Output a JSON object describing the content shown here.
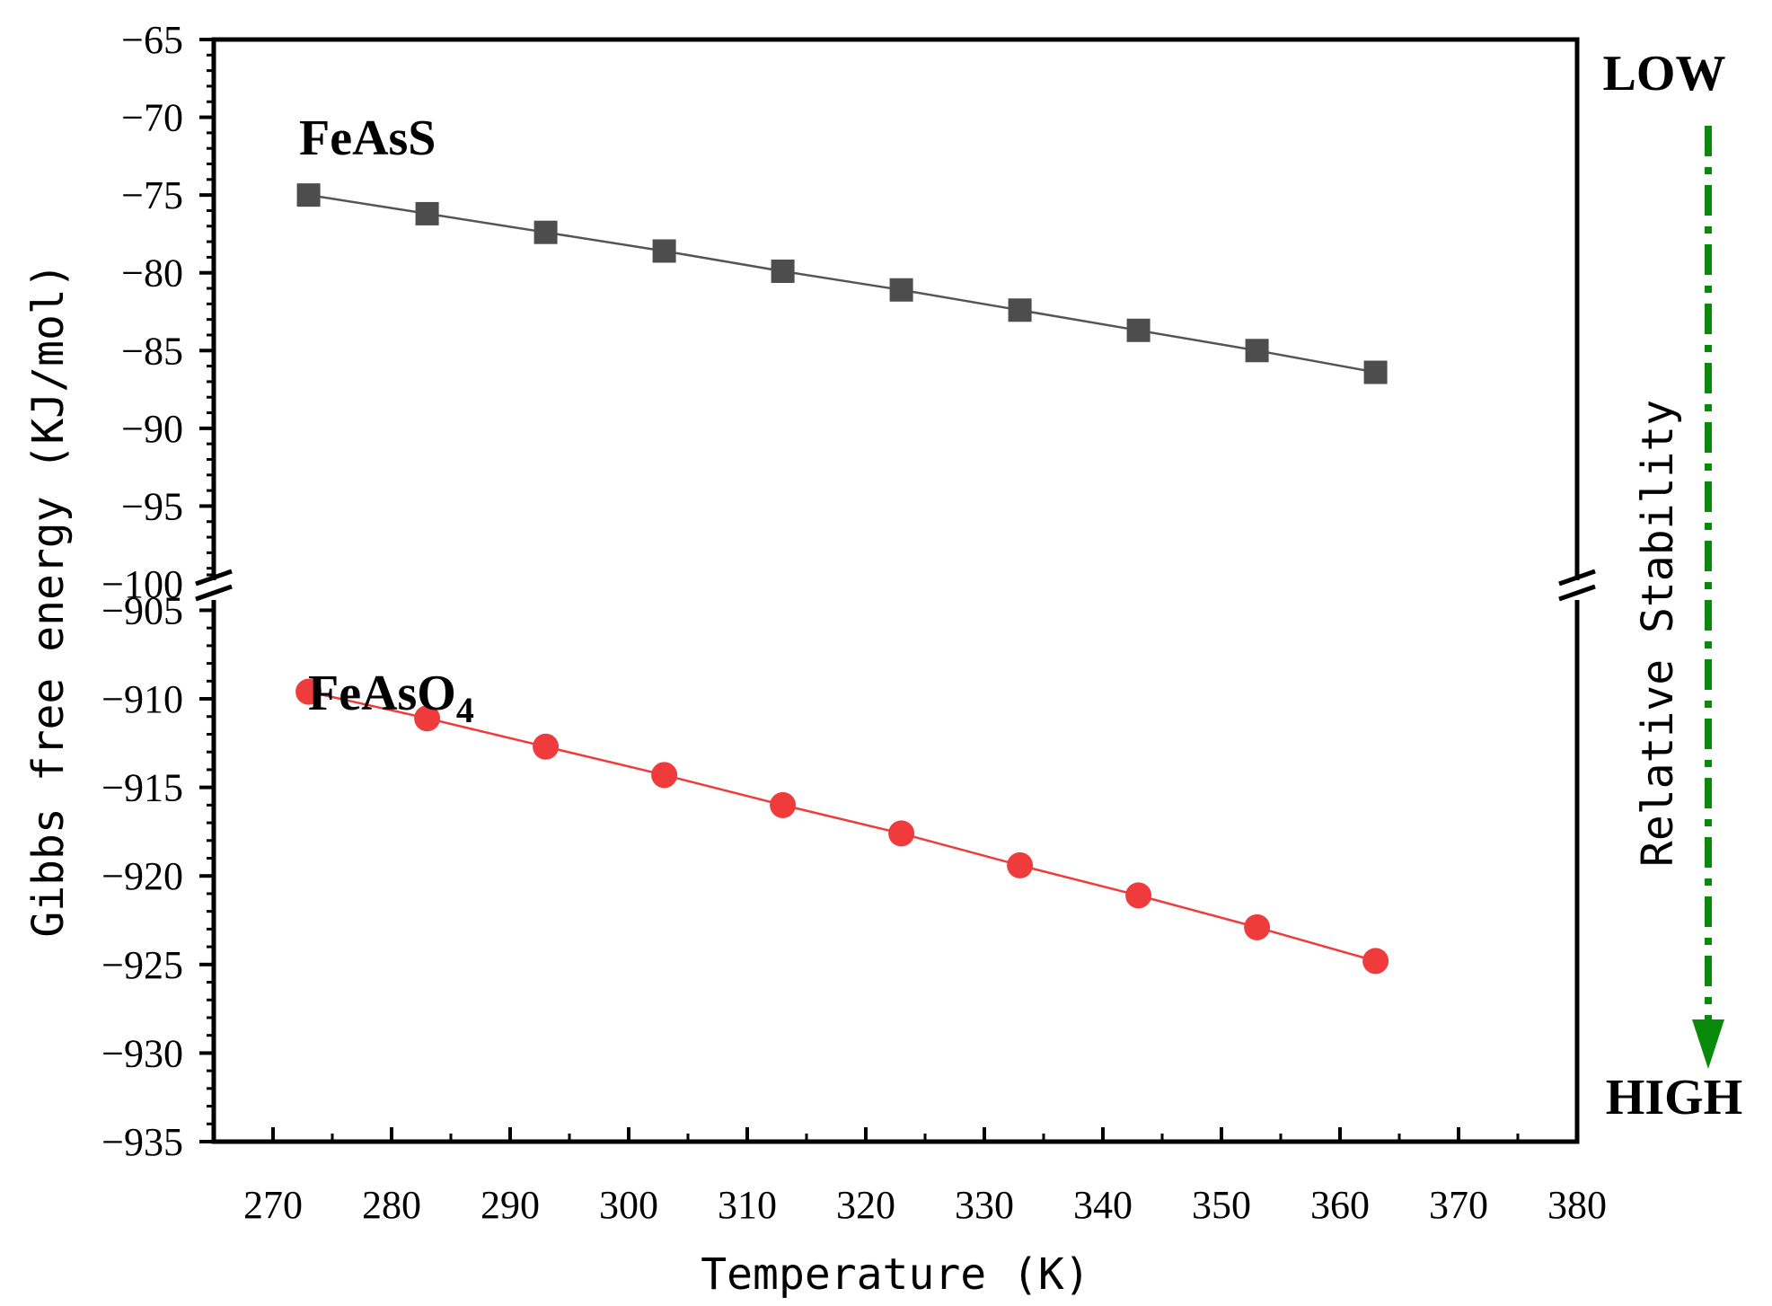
{
  "chart_data": {
    "type": "scatter",
    "xlabel": "Temperature (K)",
    "ylabel": "Gibbs free energy (KJ/mol)",
    "xlim": [
      265,
      380
    ],
    "x_ticks": [
      270,
      280,
      290,
      300,
      310,
      320,
      330,
      340,
      350,
      360,
      370,
      380
    ],
    "y_axis_break": true,
    "y_upper_segment": {
      "ylim": [
        -100,
        -65
      ],
      "ticks": [
        -65,
        -70,
        -75,
        -80,
        -85,
        -90,
        -95,
        -100
      ]
    },
    "y_lower_segment": {
      "ylim": [
        -935,
        -903
      ],
      "ticks": [
        -905,
        -910,
        -915,
        -920,
        -925,
        -930,
        -935
      ]
    },
    "tick_labels": {
      "x": [
        "270",
        "280",
        "290",
        "300",
        "310",
        "320",
        "330",
        "340",
        "350",
        "360",
        "370",
        "380"
      ],
      "y_upper": [
        "−65",
        "−70",
        "−75",
        "−80",
        "−85",
        "−90",
        "−95",
        "−100"
      ],
      "y_lower": [
        "−905",
        "−910",
        "−915",
        "−920",
        "−925",
        "−930",
        "−935"
      ]
    },
    "series": [
      {
        "name": "FeAsS",
        "label_main": "FeAsS",
        "marker": "square",
        "color": "#4d4d4d",
        "line_color": "#555555",
        "segment": "upper",
        "x": [
          273,
          283,
          293,
          303,
          313,
          323,
          333,
          343,
          353,
          363
        ],
        "y": [
          -75.0,
          -76.2,
          -77.4,
          -78.6,
          -79.9,
          -81.1,
          -82.4,
          -83.7,
          -85.0,
          -86.4
        ]
      },
      {
        "name": "FeAsO4",
        "label_main": "FeAsO",
        "label_sub": "4",
        "marker": "circle",
        "color": "#ef3b3b",
        "line_color": "#ef3b3b",
        "segment": "lower",
        "x": [
          273,
          283,
          293,
          303,
          313,
          323,
          333,
          343,
          353,
          363
        ],
        "y": [
          -909.6,
          -911.1,
          -912.7,
          -914.3,
          -916.0,
          -917.6,
          -919.4,
          -921.1,
          -922.9,
          -924.8
        ]
      }
    ],
    "stability_indicator": {
      "top_label": "LOW",
      "bottom_label": "HIGH",
      "axis_label": "Relative Stability",
      "arrow_color": "#0a8a0a"
    }
  }
}
